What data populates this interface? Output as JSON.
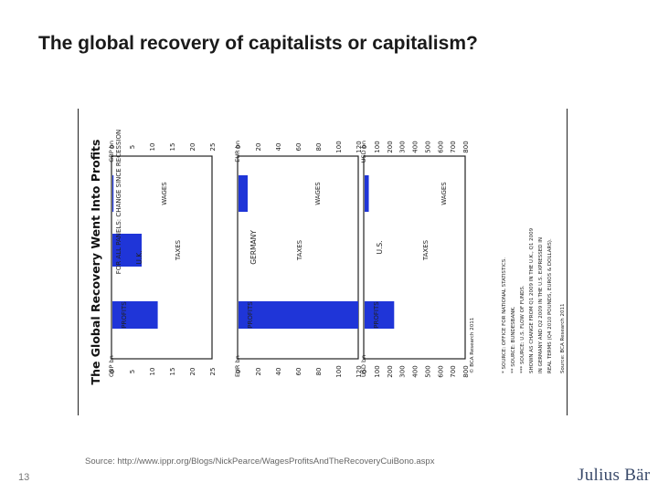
{
  "slide": {
    "title": "The global recovery of capitalists or capitalism?",
    "source": "Source: http://www.ippr.org/Blogs/NickPearce/WagesProfitsAndTheRecoveryCuiBono.aspx",
    "page_number": "13",
    "logo_text": "Julius Bär"
  },
  "chart_data": {
    "type": "bar",
    "title": "The Global Recovery Went Into Profits",
    "orientation": "rotated-90-ccw",
    "legend_note": "FOR ALL PANELS: CHANGE SINCE RECESSION",
    "categories": [
      "PROFITS",
      "TAXES",
      "WAGES"
    ],
    "panels": [
      {
        "name": "U.K.",
        "unit_label": "GBP bn",
        "ticks": [
          25,
          20,
          15,
          10,
          5,
          0
        ],
        "ylim": [
          0,
          25
        ],
        "values": [
          11.5,
          7.5,
          0.5
        ]
      },
      {
        "name": "GERMANY",
        "unit_label": "EUR bn",
        "ticks": [
          120,
          100,
          80,
          60,
          40,
          20,
          0
        ],
        "ylim": [
          0,
          120
        ],
        "values": [
          120,
          0,
          10
        ]
      },
      {
        "name": "U.S.",
        "unit_label": "USD bn",
        "ticks": [
          800,
          700,
          600,
          500,
          400,
          300,
          200,
          100,
          0
        ],
        "ylim": [
          0,
          800
        ],
        "values": [
          240,
          0,
          40
        ]
      }
    ],
    "footnotes": [
      "* SOURCE: OFFICE FOR NATIONAL STATISTICS.",
      "** SOURCE: BUNDESBANK.",
      "*** SOURCE: U.S. FLOW OF FUNDS.",
      "SHOWN AS CHANGE FROM Q1 2009 IN THE U.K., Q1 2009",
      "IN GERMANY AND Q2 2009 IN THE U.S. EXPRESSED IN",
      "REAL TERMS (Q4 2010 POUNDS, EUROS & DOLLARS)."
    ],
    "credit": "Source: BCA Research 2011",
    "copyright": "© BCA Research 2011"
  }
}
